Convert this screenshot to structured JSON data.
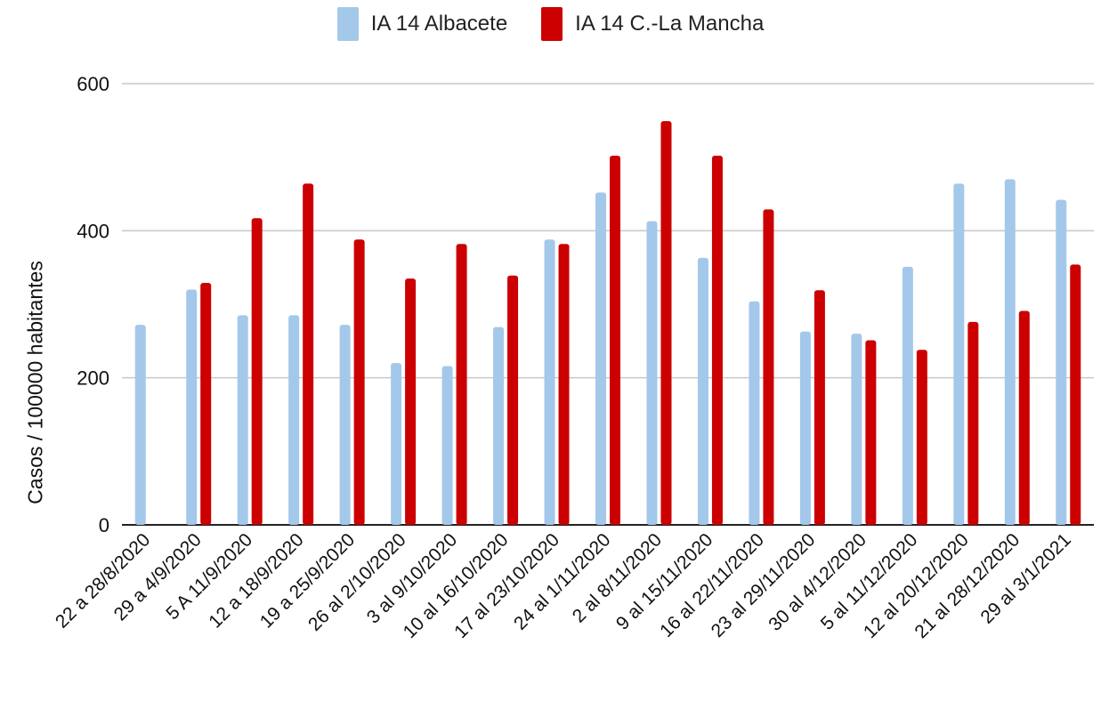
{
  "chart_data": {
    "type": "bar",
    "title": "",
    "xlabel": "",
    "ylabel": "Casos / 100000 habitantes",
    "ylim": [
      0,
      600
    ],
    "yticks": [
      0,
      200,
      400,
      600
    ],
    "grid": true,
    "legend_position": "top-center",
    "categories": [
      "22 a 28/8/2020",
      "29 a 4/9/2020",
      "5 A 11/9/2020",
      "12 a 18/9/2020",
      "19 a 25/9/2020",
      "26 al 2/10/2020",
      "3 al 9/10/2020",
      "10 al 16/10/2020",
      "17 al 23/10/2020",
      "24 al 1/11/2020",
      "2 al 8/11/2020",
      "9 al 15/11/2020",
      "16 al 22/11/2020",
      "23 al 29/11/2020",
      "30 al 4/12/2020",
      "5 al 11/12/2020",
      "12 al 20/12/2020",
      "21 al 28/12/2020",
      "29 al 3/1/2021"
    ],
    "series": [
      {
        "name": "IA 14 Albacete",
        "color": "#a4c8ea",
        "values": [
          272,
          320,
          285,
          285,
          272,
          220,
          216,
          269,
          388,
          452,
          413,
          363,
          304,
          263,
          260,
          351,
          464,
          470,
          442
        ]
      },
      {
        "name": "IA 14 C.-La Mancha",
        "color": "#cc0000",
        "values": [
          0,
          329,
          417,
          464,
          388,
          335,
          382,
          339,
          382,
          502,
          549,
          502,
          429,
          319,
          251,
          238,
          276,
          291,
          354
        ]
      }
    ]
  }
}
